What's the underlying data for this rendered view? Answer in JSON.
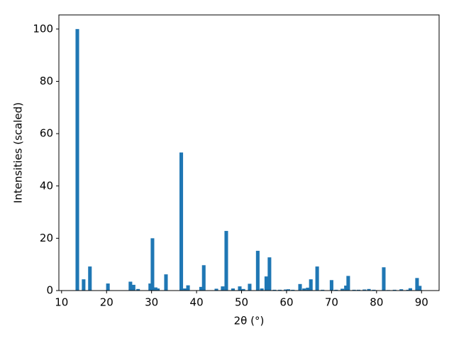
{
  "chart_data": {
    "type": "bar",
    "xlabel": "2θ (°)",
    "ylabel": "Intensities (scaled)",
    "color": "#1f77b4",
    "x": [
      13.5,
      14.9,
      16.3,
      20.3,
      25.3,
      26.0,
      27.0,
      29.7,
      30.2,
      30.9,
      31.4,
      33.2,
      36.6,
      37.4,
      38.1,
      41.0,
      41.6,
      44.4,
      45.8,
      46.6,
      48.1,
      49.6,
      50.4,
      51.8,
      53.6,
      54.5,
      55.5,
      56.2,
      57.3,
      58.5,
      59.8,
      60.4,
      61.4,
      63.0,
      63.9,
      64.7,
      65.4,
      66.8,
      68.0,
      70.0,
      71.0,
      72.4,
      73.2,
      73.7,
      75.0,
      76.0,
      77.3,
      78.3,
      79.4,
      81.6,
      82.6,
      84.0,
      85.5,
      87.0,
      87.5,
      89.0,
      89.6
    ],
    "values": [
      100,
      4.3,
      9.2,
      2.7,
      3.4,
      2.2,
      0.6,
      2.7,
      20,
      1.2,
      0.8,
      6.2,
      52.8,
      0.8,
      2,
      1.4,
      9.7,
      0.7,
      1.6,
      22.8,
      0.8,
      1.6,
      0.6,
      2.6,
      15.2,
      0.8,
      5.4,
      12.7,
      0.3,
      0.3,
      0.4,
      0.5,
      0.3,
      2.5,
      0.8,
      1.1,
      4.3,
      9.2,
      0.3,
      4.0,
      0.3,
      0.7,
      1.9,
      5.6,
      0.3,
      0.3,
      0.4,
      0.6,
      0.3,
      8.9,
      0.2,
      0.3,
      0.5,
      0.3,
      0.9,
      4.8,
      1.8
    ],
    "xlim": [
      9.4,
      93.9
    ],
    "ylim": [
      0,
      105.4
    ],
    "xticks": [
      10,
      20,
      30,
      40,
      50,
      60,
      70,
      80,
      90
    ],
    "yticks": [
      0,
      20,
      40,
      60,
      80,
      100
    ]
  }
}
